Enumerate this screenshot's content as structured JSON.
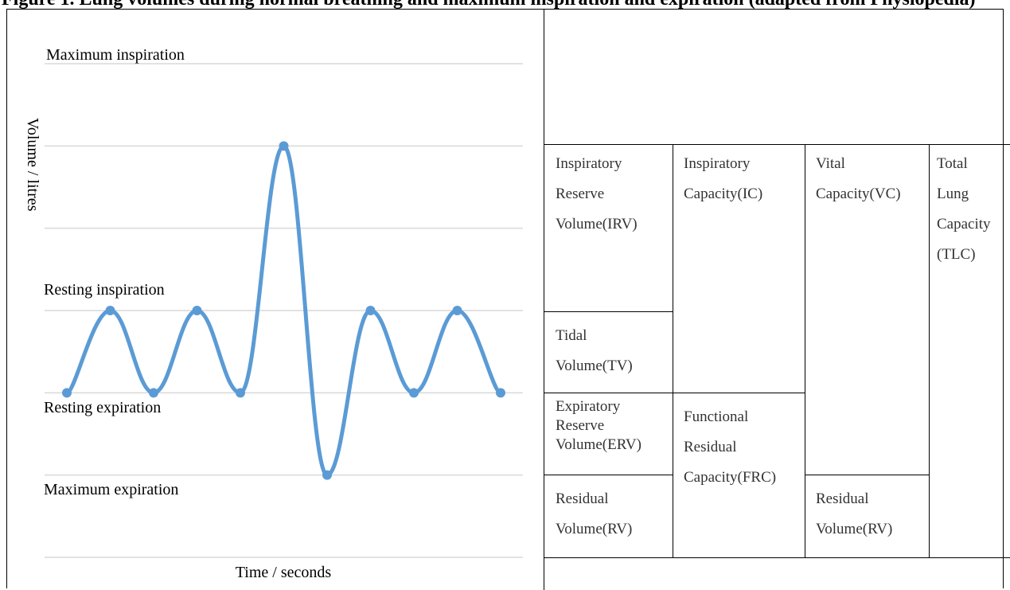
{
  "header": {
    "text": "Figure 1. Lung volumes during normal breathing and maximum inspiration and expiration (adapted from Physiopedia)"
  },
  "chart_data": {
    "type": "line",
    "xlabel": "Time / seconds",
    "ylabel": "Volume / litres",
    "annotations": [
      "Maximum inspiration",
      "Resting inspiration",
      "Resting expiration",
      "Maximum expiration"
    ],
    "x": [
      0,
      1,
      2,
      3,
      4,
      5,
      6,
      7,
      8,
      9,
      10
    ],
    "values": [
      0,
      1,
      0,
      1,
      0,
      3,
      -1,
      1,
      0,
      1,
      0
    ],
    "ylim": [
      -2,
      4
    ],
    "grid": true,
    "color": "#5b9bd5"
  },
  "table": {
    "irv": "Inspiratory\nReserve\nVolume(IRV)",
    "ic": "Inspiratory\nCapacity(IC)",
    "vc": "Vital\nCapacity(VC)",
    "tlc": "Total\nLung\nCapacity\n(TLC)",
    "tv": "Tidal\nVolume(TV)",
    "erv": "Expiratory\nReserve\nVolume(ERV)",
    "frc": "Functional\nResidual\nCapacity(FRC)",
    "rv1": "Residual\nVolume(RV)",
    "rv2": "Residual\nVolume(RV)"
  }
}
